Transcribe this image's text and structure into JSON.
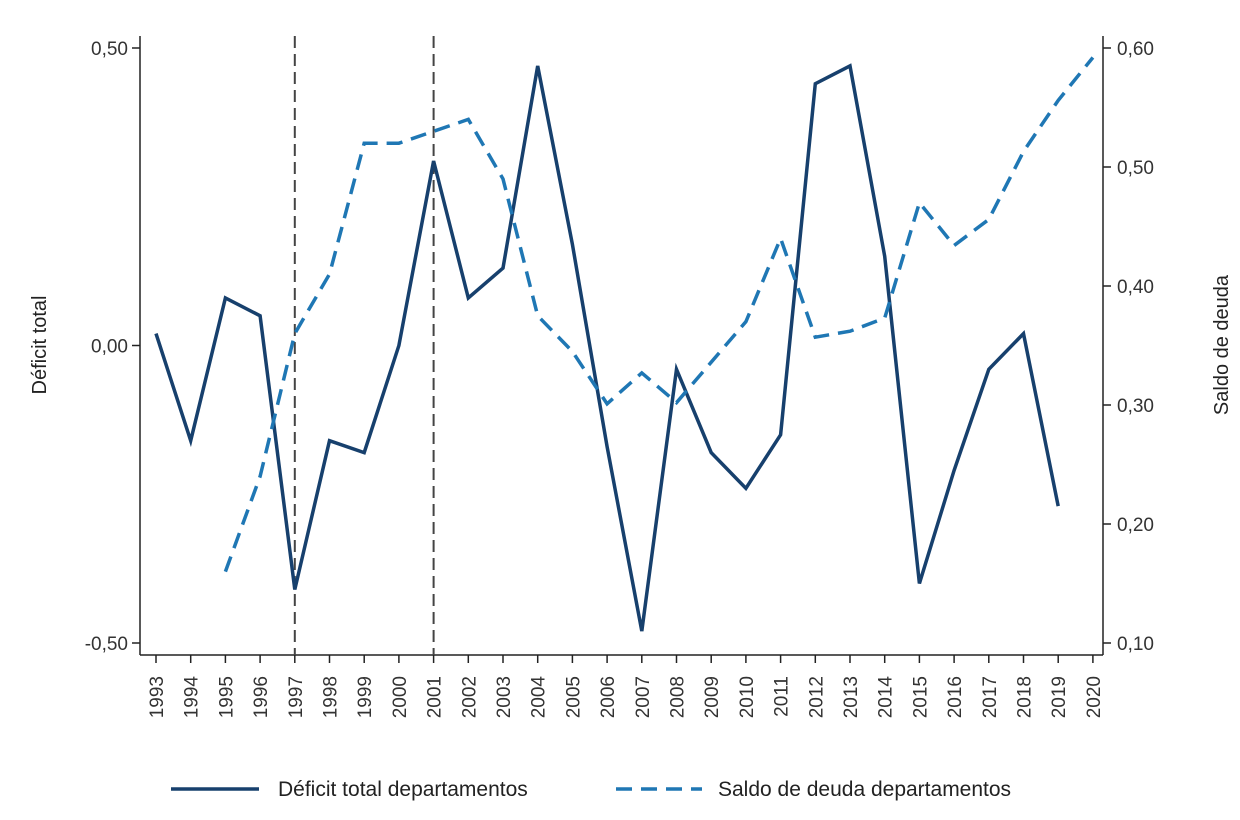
{
  "colors": {
    "deficit": "#17406d",
    "saldo": "#1f77b4",
    "axis": "#222222",
    "vline": "#444444"
  },
  "chart_data": {
    "type": "line",
    "x": [
      1993,
      1994,
      1995,
      1996,
      1997,
      1998,
      1999,
      2000,
      2001,
      2002,
      2003,
      2004,
      2005,
      2006,
      2007,
      2008,
      2009,
      2010,
      2011,
      2012,
      2013,
      2014,
      2015,
      2016,
      2017,
      2018,
      2019,
      2020
    ],
    "x_tick_labels": [
      "1993",
      "1994",
      "1995",
      "1996",
      "1997",
      "1998",
      "1999",
      "2000",
      "2001",
      "2002",
      "2003",
      "2004",
      "2005",
      "2006",
      "2007",
      "2008",
      "2009",
      "2010",
      "2011",
      "2012",
      "2013",
      "2014",
      "2015",
      "2016",
      "2017",
      "2018",
      "2019",
      "2020"
    ],
    "series": [
      {
        "name": "Déficit total departamentos",
        "axis": "left",
        "style": "solid",
        "color": "#17406d",
        "values": [
          0.02,
          -0.16,
          0.08,
          0.05,
          -0.41,
          -0.16,
          -0.18,
          0.0,
          0.31,
          0.08,
          0.13,
          0.47,
          0.17,
          -0.17,
          -0.48,
          -0.04,
          -0.18,
          -0.24,
          -0.15,
          0.44,
          0.47,
          0.15,
          -0.4,
          -0.21,
          -0.04,
          0.02,
          -0.27,
          null
        ]
      },
      {
        "name": "Saldo de deuda departamentos",
        "axis": "right",
        "style": "dashed",
        "color": "#1f77b4",
        "values": [
          null,
          null,
          0.16,
          0.24,
          0.36,
          0.41,
          0.52,
          0.52,
          0.53,
          0.54,
          0.49,
          0.375,
          0.345,
          0.301,
          0.327,
          0.302,
          0.336,
          0.37,
          0.44,
          0.357,
          0.362,
          0.373,
          0.47,
          0.434,
          0.456,
          0.513,
          0.556,
          0.592
        ]
      }
    ],
    "ylabel_left": "Déficit total",
    "ylabel_right": "Saldo de deuda",
    "ylim_left": [
      -0.5,
      0.5
    ],
    "ylim_right": [
      0.1,
      0.6
    ],
    "yticks_left": [
      -0.5,
      0.0,
      0.5
    ],
    "yticks_left_labels": [
      "-0,50",
      "0,00",
      "0,50"
    ],
    "yticks_right": [
      0.1,
      0.2,
      0.3,
      0.4,
      0.5,
      0.6
    ],
    "yticks_right_labels": [
      "0,10",
      "0,20",
      "0,30",
      "0,40",
      "0,50",
      "0,60"
    ],
    "vertical_lines": [
      1997,
      2001
    ],
    "grid": false,
    "legend_position": "bottom"
  }
}
